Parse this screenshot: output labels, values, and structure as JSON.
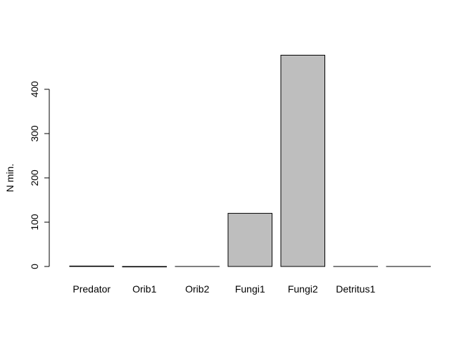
{
  "chart_data": {
    "type": "bar",
    "title": "",
    "xlabel": "",
    "ylabel": "N min.",
    "categories": [
      "Predator",
      "Orib1",
      "Orib2",
      "Fungi1",
      "Fungi2",
      "Detritus1",
      ""
    ],
    "values": [
      1,
      -1,
      0,
      120,
      477,
      0,
      0
    ],
    "ylim": [
      0,
      477
    ],
    "yticks": [
      0,
      100,
      200,
      300,
      400
    ],
    "grid": false,
    "legend": "none",
    "bar_fill": "#bebebe",
    "bar_stroke": "#000000"
  }
}
